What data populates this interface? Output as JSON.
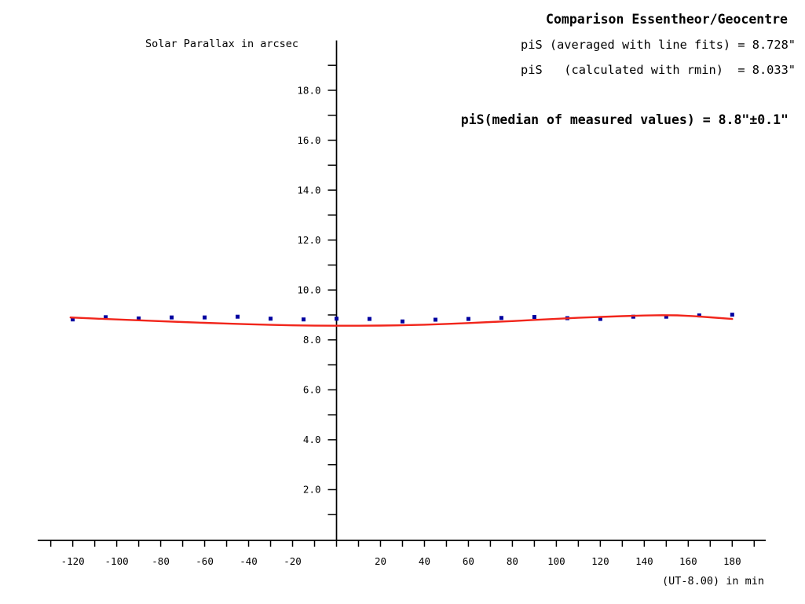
{
  "page": {
    "background": "#ffffff",
    "text_color": "#000000"
  },
  "chart_data": {
    "type": "scatter",
    "title": "Comparison Essentheor/Geocentre",
    "annotations": {
      "line_fit": "piS (averaged with line fits) = 8.728\"",
      "rmin": "piS   (calculated with rmin)  = 8.033\"",
      "median": "piS(median of measured values) = 8.8\"±0.1\""
    },
    "ylabel": "Solar Parallax in arcsec",
    "xlabel": "(UT-8.00) in min",
    "xlim": [
      -136,
      195
    ],
    "ylim": [
      0,
      20
    ],
    "grid": false,
    "legend": "none",
    "axis_color": "#000000",
    "x_axis": {
      "ticks": {
        "from": -130,
        "to": 190,
        "step": 10
      },
      "labels": [
        {
          "v": -120,
          "t": "-120"
        },
        {
          "v": -100,
          "t": "-100"
        },
        {
          "v": -80,
          "t": "-80"
        },
        {
          "v": -60,
          "t": "-60"
        },
        {
          "v": -40,
          "t": "-40"
        },
        {
          "v": -20,
          "t": "-20"
        },
        {
          "v": 20,
          "t": "20"
        },
        {
          "v": 40,
          "t": "40"
        },
        {
          "v": 60,
          "t": "60"
        },
        {
          "v": 80,
          "t": "80"
        },
        {
          "v": 100,
          "t": "100"
        },
        {
          "v": 120,
          "t": "120"
        },
        {
          "v": 140,
          "t": "140"
        },
        {
          "v": 160,
          "t": "160"
        },
        {
          "v": 180,
          "t": "180"
        }
      ]
    },
    "y_axis": {
      "ticks": {
        "from": 1,
        "to": 19,
        "step": 1
      },
      "labels": [
        {
          "v": 2,
          "t": "2.0"
        },
        {
          "v": 4,
          "t": "4.0"
        },
        {
          "v": 6,
          "t": "6.0"
        },
        {
          "v": 8,
          "t": "8.0"
        },
        {
          "v": 10,
          "t": "10.0"
        },
        {
          "v": 12,
          "t": "12.0"
        },
        {
          "v": 14,
          "t": "14.0"
        },
        {
          "v": 16,
          "t": "16.0"
        },
        {
          "v": 18,
          "t": "18.0"
        }
      ]
    },
    "series": [
      {
        "name": "measured-parallax-points",
        "type": "scatter",
        "marker": "square",
        "marker_size": 5,
        "color": "#0000a0",
        "points": [
          [
            -120,
            8.82
          ],
          [
            -105,
            8.91
          ],
          [
            -90,
            8.86
          ],
          [
            -75,
            8.9
          ],
          [
            -60,
            8.9
          ],
          [
            -45,
            8.93
          ],
          [
            -30,
            8.85
          ],
          [
            -15,
            8.82
          ],
          [
            0,
            8.85
          ],
          [
            15,
            8.84
          ],
          [
            30,
            8.74
          ],
          [
            45,
            8.81
          ],
          [
            60,
            8.84
          ],
          [
            75,
            8.88
          ],
          [
            90,
            8.92
          ],
          [
            105,
            8.87
          ],
          [
            120,
            8.84
          ],
          [
            135,
            8.93
          ],
          [
            150,
            8.93
          ],
          [
            165,
            8.98
          ],
          [
            180,
            9.01
          ]
        ]
      },
      {
        "name": "theory-fit-curve",
        "type": "line",
        "width": 2.4,
        "color": "#f1251b",
        "points": [
          [
            -121,
            8.9
          ],
          [
            -110,
            8.855
          ],
          [
            -100,
            8.82
          ],
          [
            -90,
            8.785
          ],
          [
            -80,
            8.75
          ],
          [
            -70,
            8.715
          ],
          [
            -60,
            8.685
          ],
          [
            -50,
            8.655
          ],
          [
            -40,
            8.627
          ],
          [
            -30,
            8.603
          ],
          [
            -20,
            8.585
          ],
          [
            -10,
            8.572
          ],
          [
            0,
            8.567
          ],
          [
            10,
            8.567
          ],
          [
            20,
            8.574
          ],
          [
            30,
            8.588
          ],
          [
            40,
            8.61
          ],
          [
            50,
            8.64
          ],
          [
            60,
            8.675
          ],
          [
            70,
            8.715
          ],
          [
            80,
            8.755
          ],
          [
            90,
            8.8
          ],
          [
            100,
            8.845
          ],
          [
            110,
            8.885
          ],
          [
            120,
            8.92
          ],
          [
            130,
            8.952
          ],
          [
            140,
            8.978
          ],
          [
            148,
            8.99
          ],
          [
            155,
            8.985
          ],
          [
            162,
            8.955
          ],
          [
            170,
            8.905
          ],
          [
            180,
            8.84
          ]
        ]
      }
    ]
  }
}
